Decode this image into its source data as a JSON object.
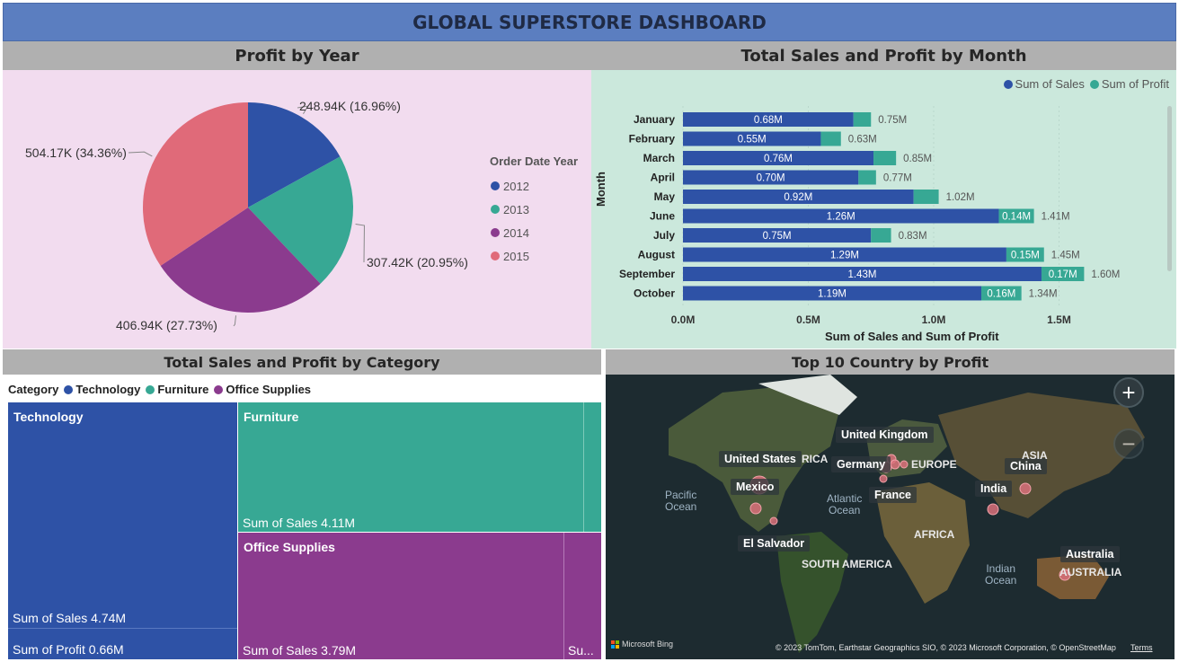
{
  "dashboard_title": "GLOBAL SUPERSTORE DASHBOARD",
  "colors": {
    "title_bg": "#5b7ec0",
    "header_bg": "#b0b0b0",
    "pie_panel_bg": "#f2dcef",
    "bar_panel_bg": "#cbe8dc",
    "blue": "#2e52a6",
    "teal": "#37a894",
    "purple": "#8b3b8e",
    "pink": "#e06a79"
  },
  "sections": {
    "profit_by_year": "Profit by Year",
    "sales_profit_month": "Total Sales and Profit by Month",
    "sales_profit_category": "Total Sales and Profit by Category",
    "top_country": "Top 10 Country by Profit"
  },
  "pie": {
    "legend_title": "Order Date Year",
    "legend": [
      "2012",
      "2013",
      "2014",
      "2015"
    ],
    "labels": [
      "248.94K (16.96%)",
      "307.42K (20.95%)",
      "406.94K (27.73%)",
      "504.17K (34.36%)"
    ]
  },
  "bar": {
    "legend": [
      "Sum of Sales",
      "Sum of Profit"
    ],
    "ylabel": "Month",
    "xlabel": "Sum of Sales and Sum of Profit",
    "ticks": [
      "0.0M",
      "0.5M",
      "1.0M",
      "1.5M"
    ],
    "profit_labels": [
      "",
      "",
      "",
      "",
      "",
      "0.14M",
      "",
      "0.15M",
      "0.17M",
      "0.16M"
    ],
    "sales_labels": [
      "0.68M",
      "0.55M",
      "0.76M",
      "0.70M",
      "0.92M",
      "1.26M",
      "0.75M",
      "1.29M",
      "1.43M",
      "1.19M"
    ],
    "total_labels": [
      "0.75M",
      "0.63M",
      "0.85M",
      "0.77M",
      "1.02M",
      "1.41M",
      "0.83M",
      "1.45M",
      "1.60M",
      "1.34M"
    ]
  },
  "chart_data": [
    {
      "type": "pie",
      "title": "Profit by Year",
      "legend_title": "Order Date Year",
      "categories": [
        "2012",
        "2013",
        "2014",
        "2015"
      ],
      "values": [
        248940,
        307420,
        406940,
        504170
      ],
      "percentages": [
        16.96,
        20.95,
        27.73,
        34.36
      ],
      "legend_position": "right"
    },
    {
      "type": "bar",
      "orientation": "horizontal",
      "stacked": true,
      "title": "Total Sales and Profit by Month",
      "xlabel": "Sum of Sales and Sum of Profit",
      "ylabel": "Month",
      "categories": [
        "January",
        "February",
        "March",
        "April",
        "May",
        "June",
        "July",
        "August",
        "September",
        "October"
      ],
      "series": [
        {
          "name": "Sum of Sales",
          "values": [
            0.68,
            0.55,
            0.76,
            0.7,
            0.92,
            1.26,
            0.75,
            1.29,
            1.43,
            1.19
          ]
        },
        {
          "name": "Sum of Profit",
          "values": [
            0.07,
            0.08,
            0.09,
            0.07,
            0.1,
            0.14,
            0.08,
            0.15,
            0.17,
            0.16
          ]
        }
      ],
      "totals": [
        0.75,
        0.63,
        0.85,
        0.77,
        1.02,
        1.41,
        0.83,
        1.45,
        1.6,
        1.34
      ],
      "unit": "M",
      "xlim": [
        0,
        1.6
      ],
      "legend_position": "top-right"
    },
    {
      "type": "treemap",
      "title": "Total Sales and Profit by Category",
      "legend_title": "Category",
      "categories": [
        "Technology",
        "Furniture",
        "Office Supplies"
      ],
      "sales": [
        4.74,
        4.11,
        3.79
      ],
      "profit": [
        0.66,
        null,
        null
      ],
      "unit": "M",
      "labels": {
        "technology_sales": "Sum of Sales 4.74M",
        "technology_profit": "Sum of Profit 0.66M",
        "furniture_sales": "Sum of Sales 4.11M",
        "office_sales": "Sum of Sales 3.79M",
        "office_truncated": "Su..."
      }
    },
    {
      "type": "map",
      "title": "Top 10 Country by Profit",
      "countries": [
        "United States",
        "United Kingdom",
        "Germany",
        "France",
        "Mexico",
        "El Salvador",
        "India",
        "China",
        "Australia"
      ]
    }
  ],
  "map": {
    "countries": [
      "United Kingdom",
      "United States",
      "Germany",
      "France",
      "Mexico",
      "El Salvador",
      "India",
      "China",
      "Australia"
    ],
    "regions": [
      "EUROPE",
      "ASIA",
      "AFRICA",
      "SOUTH AMERICA",
      "AUSTRALIA",
      "RICA"
    ],
    "oceans": [
      "Pacific\nOcean",
      "Atlantic\nOcean",
      "Indian\nOcean"
    ],
    "zoom_in": "+",
    "zoom_out": "−",
    "brand": "Microsoft Bing",
    "copyright": "© 2023 TomTom, Earthstar Geographics SIO, © 2023 Microsoft Corporation, © OpenStreetMap",
    "terms": "Terms"
  }
}
